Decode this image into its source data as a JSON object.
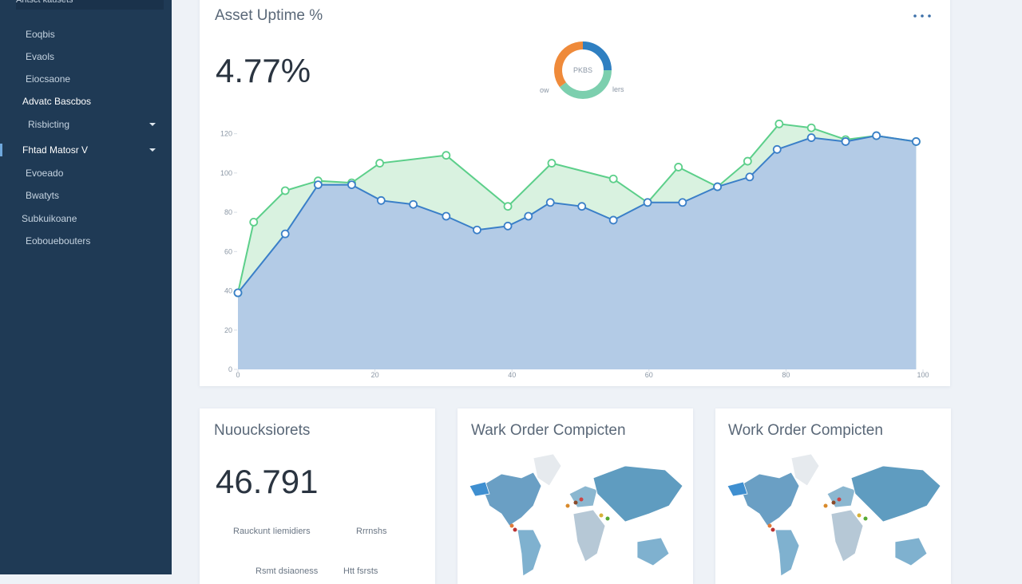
{
  "sidebar": {
    "header": "Ahtsct kausets",
    "items": [
      "Eoqbis",
      "Evaols",
      "Eiocsaone",
      "Advatc Bascbos",
      "Risbicting",
      "Fhtad Matosr V",
      "Evoeado",
      "Bwatyts",
      "Subkuikoane",
      "Eobouebouters"
    ]
  },
  "uptime_card": {
    "title": "Asset Uptime %",
    "value": "4.77%",
    "donut": {
      "center_label": "PKBS",
      "left_label": "ow",
      "right_label": "lers",
      "values": [
        25,
        40,
        35
      ],
      "colors": [
        "#2f7fc1",
        "#7ccfae",
        "#ef8a3a"
      ]
    },
    "chart": {
      "type": "area-line",
      "xlim": [
        0,
        100
      ],
      "xticks": [
        0,
        20,
        40,
        60,
        80,
        100
      ],
      "ylim": [
        0,
        130
      ],
      "yticks": [
        0,
        20,
        40,
        60,
        80,
        100,
        120
      ],
      "series": [
        {
          "color": "#3a7fc8",
          "fill": "#b3cbe6",
          "x": [
            0,
            6.9,
            11.7,
            16.6,
            20.9,
            25.6,
            30.4,
            34.9,
            39.4,
            42.4,
            45.6,
            50.2,
            54.8,
            59.8,
            64.9,
            70,
            74.7,
            78.7,
            83.7,
            88.7,
            93.2,
            99
          ],
          "values": [
            39,
            69,
            94,
            94,
            86,
            84,
            78,
            71,
            73,
            78,
            85,
            83,
            76,
            85,
            85,
            93,
            98,
            112,
            118,
            116,
            119,
            116
          ]
        },
        {
          "color": "#5ccf8a",
          "fill": "#d9f2e0",
          "x": [
            0,
            2.3,
            6.9,
            11.7,
            16.6,
            20.7,
            30.4,
            39.4,
            45.8,
            54.8,
            59.8,
            64.3,
            70,
            74.4,
            79,
            83.7,
            88.7,
            93.2,
            99
          ],
          "values": [
            39,
            75,
            91,
            96,
            95,
            105,
            109,
            83,
            105,
            97,
            85,
            103,
            93,
            106,
            125,
            123,
            117,
            119,
            116
          ]
        }
      ]
    }
  },
  "cards": [
    {
      "title": "Nuoucksiorets",
      "value": "46.791",
      "rows": [
        [
          "Rauckunt Iiemidiers",
          "Rrrnshs"
        ],
        [
          "Rsmt dsiaoness",
          "Htt fsrsts"
        ]
      ]
    },
    {
      "title": "Wark Order Compicten"
    },
    {
      "title": "Work Order Compicten"
    }
  ]
}
